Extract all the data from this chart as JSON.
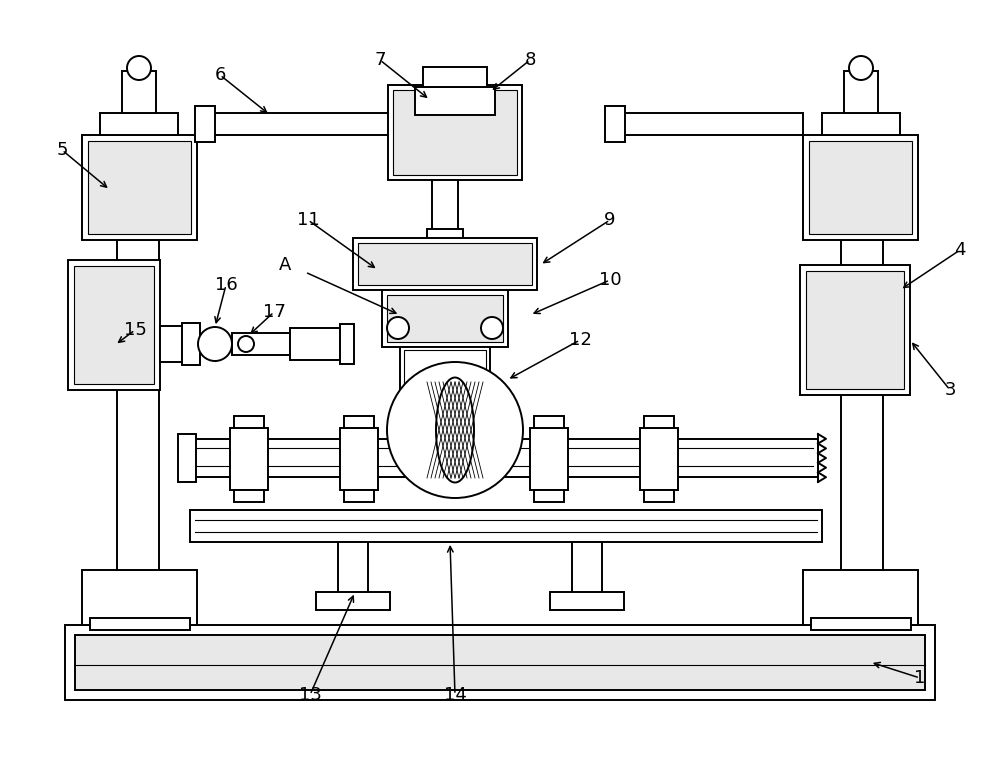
{
  "bg_color": "#ffffff",
  "line_color": "#000000",
  "lw": 1.4,
  "fig_w": 10.0,
  "fig_h": 7.6
}
